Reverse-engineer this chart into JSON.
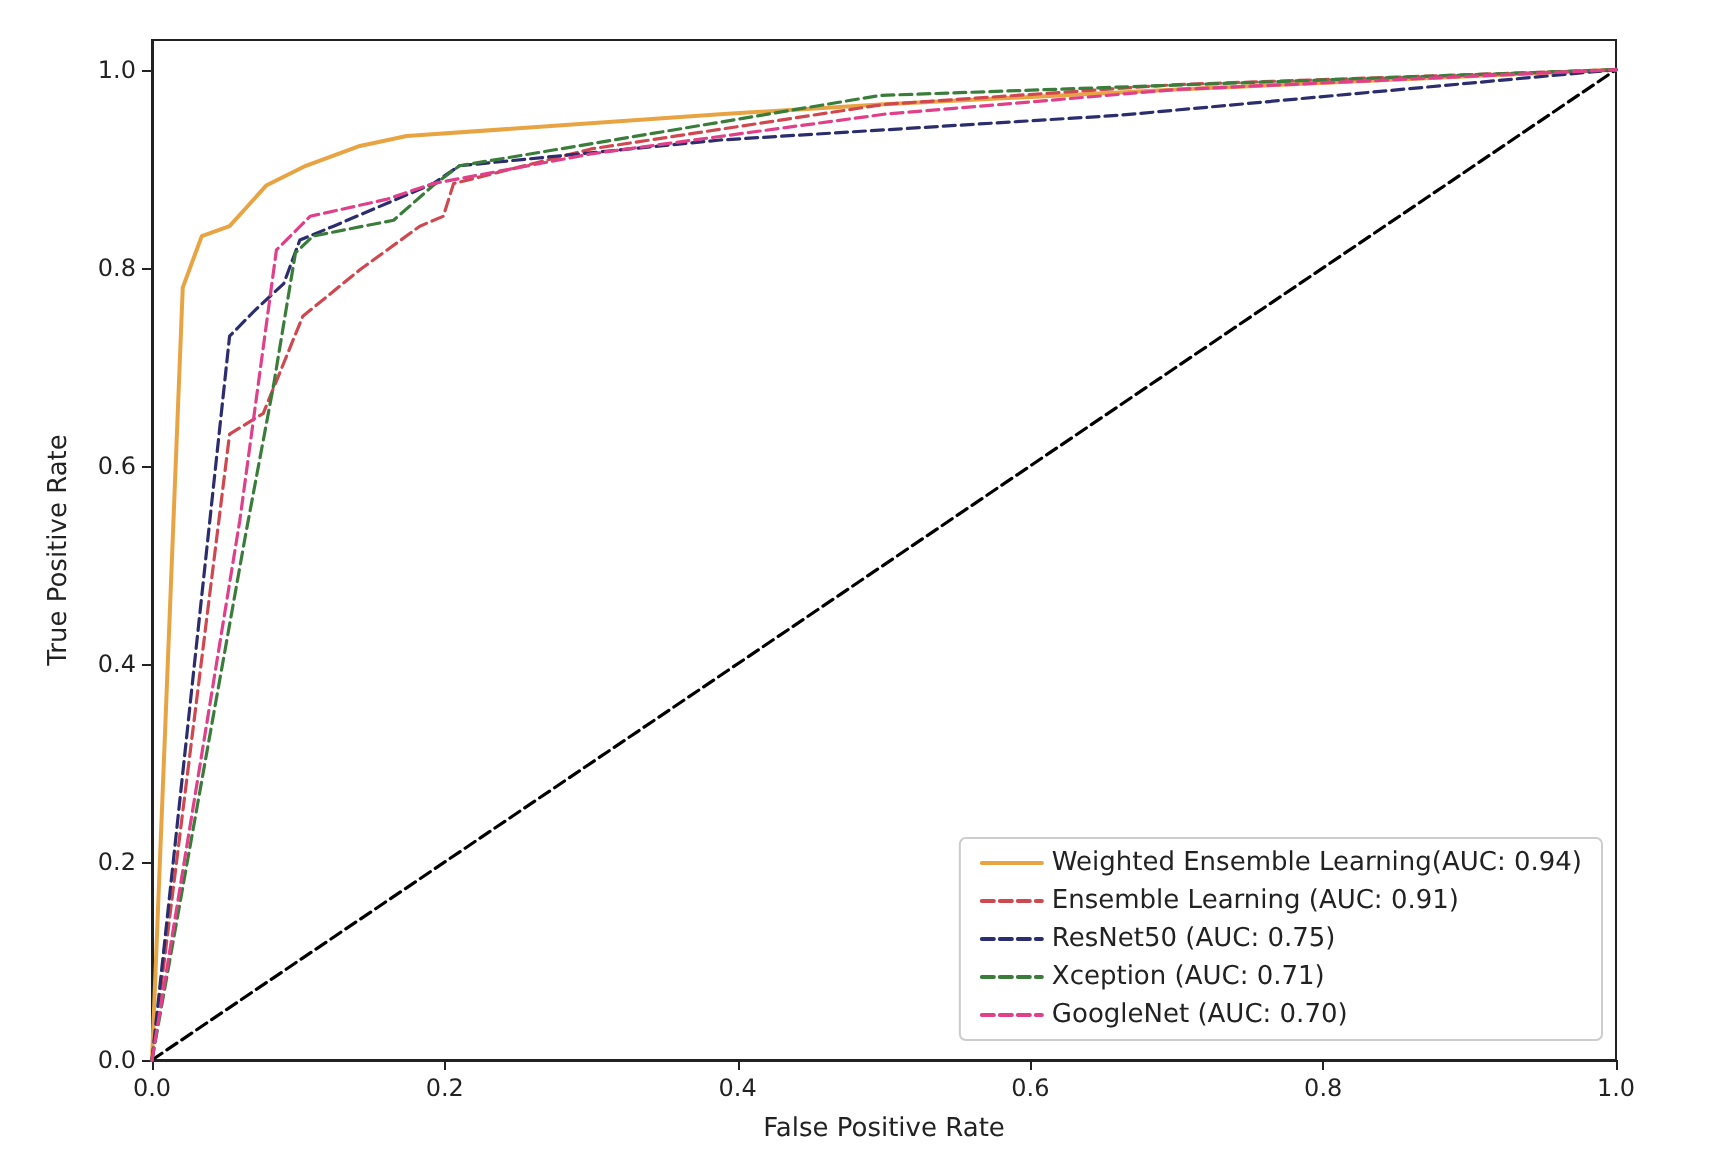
{
  "chart_data": {
    "type": "line",
    "xlabel": "False Positive Rate",
    "ylabel": "True Positive Rate",
    "xlim": [
      0,
      1
    ],
    "ylim": [
      0,
      1.03
    ],
    "xticks": [
      {
        "value": 0,
        "label": "0.0"
      },
      0.2,
      0.4,
      0.6,
      0.8,
      {
        "value": 1,
        "label": "1.0"
      }
    ],
    "yticks": [
      {
        "value": 0,
        "label": "0.0"
      },
      0.2,
      0.4,
      0.6,
      0.8,
      {
        "value": 1,
        "label": "1.0"
      }
    ],
    "grid": false,
    "legend": "bottom right",
    "marker": "none",
    "series": [
      {
        "name": "Weighted Ensemble Learning(AUC: 0.94)",
        "color": "#e8a443",
        "line_style": "solid",
        "x": [
          0,
          0.021,
          0.034,
          0.053,
          0.078,
          0.105,
          0.142,
          0.174,
          0.388,
          0.5,
          0.7,
          1
        ],
        "values": [
          0,
          0.78,
          0.832,
          0.842,
          0.883,
          0.903,
          0.923,
          0.933,
          0.955,
          0.965,
          0.98,
          1
        ]
      },
      {
        "name": "Ensemble Learning (AUC: 0.91)",
        "color": "#d0484f",
        "line_style": "dashed",
        "x": [
          0,
          0.053,
          0.076,
          0.103,
          0.142,
          0.183,
          0.199,
          0.206,
          0.3,
          0.5,
          0.7,
          1
        ],
        "values": [
          0,
          0.632,
          0.653,
          0.751,
          0.798,
          0.842,
          0.852,
          0.885,
          0.92,
          0.965,
          0.985,
          1
        ]
      },
      {
        "name": "ResNet50 (AUC: 0.75)",
        "color": "#2b2d6e",
        "line_style": "dashed",
        "x": [
          0,
          0.053,
          0.071,
          0.09,
          0.101,
          0.124,
          0.192,
          0.21,
          0.388,
          0.661,
          1
        ],
        "values": [
          0,
          0.731,
          0.758,
          0.784,
          0.828,
          0.842,
          0.885,
          0.903,
          0.929,
          0.954,
          1
        ]
      },
      {
        "name": "Xception (AUC: 0.71)",
        "color": "#3a7d3a",
        "line_style": "dashed",
        "x": [
          0,
          0.064,
          0.083,
          0.098,
          0.11,
          0.165,
          0.192,
          0.21,
          0.497,
          1
        ],
        "values": [
          0,
          0.531,
          0.681,
          0.815,
          0.832,
          0.848,
          0.883,
          0.903,
          0.974,
          1
        ]
      },
      {
        "name": "GoogleNet (AUC: 0.70)",
        "color": "#e0408a",
        "line_style": "dashed",
        "x": [
          0,
          0.06,
          0.085,
          0.108,
          0.16,
          0.192,
          0.3,
          0.5,
          0.7,
          1
        ],
        "values": [
          0,
          0.545,
          0.818,
          0.852,
          0.869,
          0.885,
          0.915,
          0.955,
          0.98,
          1
        ]
      },
      {
        "color": "#000000",
        "line_style": "dashed",
        "x": [
          0,
          1
        ],
        "values": [
          0,
          1
        ]
      }
    ]
  }
}
